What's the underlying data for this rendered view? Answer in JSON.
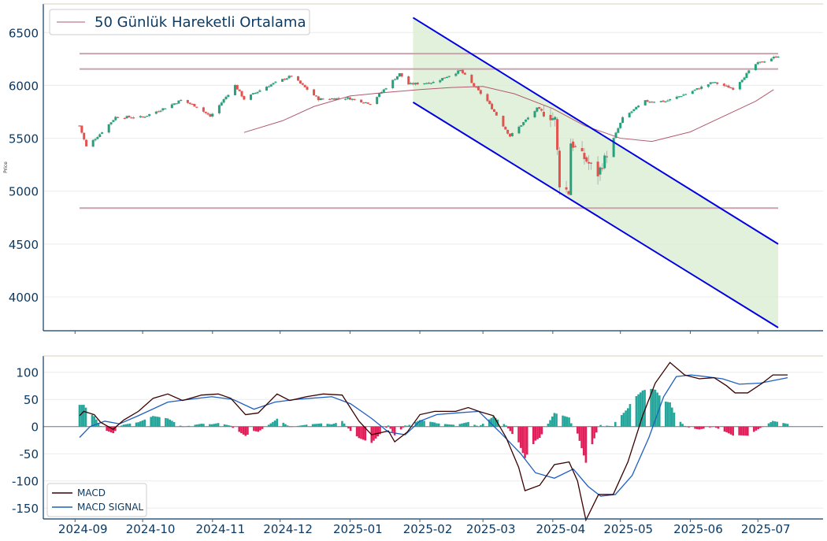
{
  "colors": {
    "up": "#26a17e",
    "down": "#e5514d",
    "sma": "#b05a6e",
    "hline": "#c8a4ad",
    "channel_line": "#0000e0",
    "channel_fill": "#d8ecd0",
    "macd": "#3a0000",
    "signal": "#1f5fc0",
    "hist_pos": "#26a69a",
    "hist_neg": "#e0205a",
    "axis_text": "#0c3a63"
  },
  "chart_data": [
    {
      "type": "candlestick",
      "title": "",
      "ylabel": "Price",
      "ylim": [
        3680,
        6770
      ],
      "yticks": [
        4000,
        4500,
        5000,
        5500,
        6000,
        6500
      ],
      "grid": true,
      "legend_position": "top-left",
      "legend": [
        "50 Günlük Hareketli Ortalama"
      ],
      "x_start": "2024-09-03",
      "x_end": "2025-07-10",
      "candle_keypoints": [
        [
          "2024-09-03",
          5620
        ],
        [
          "2024-09-06",
          5420
        ],
        [
          "2024-09-12",
          5540
        ],
        [
          "2024-09-19",
          5700
        ],
        [
          "2024-10-01",
          5700
        ],
        [
          "2024-10-10",
          5780
        ],
        [
          "2024-10-18",
          5860
        ],
        [
          "2024-10-25",
          5800
        ],
        [
          "2024-10-31",
          5705
        ],
        [
          "2024-11-11",
          6000
        ],
        [
          "2024-11-15",
          5870
        ],
        [
          "2024-11-25",
          5990
        ],
        [
          "2024-12-06",
          6090
        ],
        [
          "2024-12-18",
          5870
        ],
        [
          "2024-12-31",
          5880
        ],
        [
          "2025-01-10",
          5830
        ],
        [
          "2025-01-23",
          6110
        ],
        [
          "2025-01-27",
          6010
        ],
        [
          "2025-02-07",
          6030
        ],
        [
          "2025-02-19",
          6140
        ],
        [
          "2025-03-03",
          5850
        ],
        [
          "2025-03-13",
          5520
        ],
        [
          "2025-03-25",
          5780
        ],
        [
          "2025-04-02",
          5680
        ],
        [
          "2025-04-04",
          5070
        ],
        [
          "2025-04-08",
          4990
        ],
        [
          "2025-04-09",
          5460
        ],
        [
          "2025-04-21",
          5160
        ],
        [
          "2025-05-02",
          5690
        ],
        [
          "2025-05-12",
          5850
        ],
        [
          "2025-05-21",
          5850
        ],
        [
          "2025-05-30",
          5920
        ],
        [
          "2025-06-11",
          6030
        ],
        [
          "2025-06-20",
          5970
        ],
        [
          "2025-06-30",
          6200
        ],
        [
          "2025-07-10",
          6280
        ]
      ],
      "sma_50": [
        [
          "2024-11-15",
          5555
        ],
        [
          "2024-12-02",
          5665
        ],
        [
          "2024-12-16",
          5800
        ],
        [
          "2025-01-01",
          5900
        ],
        [
          "2025-01-15",
          5930
        ],
        [
          "2025-02-01",
          5960
        ],
        [
          "2025-02-15",
          5980
        ],
        [
          "2025-03-01",
          5990
        ],
        [
          "2025-03-15",
          5920
        ],
        [
          "2025-04-01",
          5780
        ],
        [
          "2025-04-15",
          5620
        ],
        [
          "2025-05-01",
          5500
        ],
        [
          "2025-05-15",
          5470
        ],
        [
          "2025-06-01",
          5560
        ],
        [
          "2025-06-15",
          5700
        ],
        [
          "2025-06-30",
          5850
        ],
        [
          "2025-07-08",
          5960
        ]
      ],
      "horizontal_levels": [
        6300,
        6155,
        4840
      ],
      "channel": {
        "upper": [
          [
            "2025-01-29",
            6640
          ],
          [
            "2025-07-10",
            4500
          ]
        ],
        "lower": [
          [
            "2025-01-29",
            5840
          ],
          [
            "2025-07-10",
            3710
          ]
        ]
      }
    },
    {
      "type": "macd",
      "ylim": [
        -170,
        130
      ],
      "yticks": [
        -150,
        -100,
        -50,
        0,
        50,
        100
      ],
      "grid": true,
      "legend_position": "bottom-left",
      "legend": [
        "MACD",
        "MACD SIGNAL"
      ],
      "xticks": [
        "2024-09",
        "2024-10",
        "2024-11",
        "2024-12",
        "2025-01",
        "2025-02",
        "2025-03",
        "2025-04",
        "2025-05",
        "2025-06",
        "2025-07"
      ],
      "macd": [
        [
          "2024-09-03",
          20
        ],
        [
          "2024-09-05",
          28
        ],
        [
          "2024-09-10",
          22
        ],
        [
          "2024-09-13",
          8
        ],
        [
          "2024-09-19",
          -5
        ],
        [
          "2024-09-24",
          12
        ],
        [
          "2024-10-01",
          28
        ],
        [
          "2024-10-08",
          52
        ],
        [
          "2024-10-15",
          60
        ],
        [
          "2024-10-22",
          48
        ],
        [
          "2024-10-31",
          58
        ],
        [
          "2024-11-08",
          60
        ],
        [
          "2024-11-14",
          52
        ],
        [
          "2024-11-21",
          22
        ],
        [
          "2024-11-27",
          25
        ],
        [
          "2024-12-06",
          60
        ],
        [
          "2024-12-12",
          48
        ],
        [
          "2024-12-20",
          55
        ],
        [
          "2024-12-28",
          60
        ],
        [
          "2025-01-06",
          58
        ],
        [
          "2025-01-14",
          10
        ],
        [
          "2025-01-20",
          -15
        ],
        [
          "2025-01-28",
          -8
        ],
        [
          "2025-01-31",
          -28
        ],
        [
          "2025-02-06",
          -10
        ],
        [
          "2025-02-12",
          22
        ],
        [
          "2025-02-19",
          28
        ],
        [
          "2025-03-01",
          28
        ],
        [
          "2025-03-07",
          35
        ],
        [
          "2025-03-12",
          28
        ],
        [
          "2025-03-19",
          20
        ],
        [
          "2025-03-25",
          -20
        ],
        [
          "2025-03-31",
          -75
        ],
        [
          "2025-04-03",
          -118
        ],
        [
          "2025-04-10",
          -108
        ],
        [
          "2025-04-17",
          -70
        ],
        [
          "2025-04-24",
          -65
        ],
        [
          "2025-04-28",
          -100
        ],
        [
          "2025-05-02",
          -172
        ],
        [
          "2025-05-08",
          -125
        ],
        [
          "2025-05-15",
          -125
        ],
        [
          "2025-05-22",
          -65
        ],
        [
          "2025-05-29",
          20
        ],
        [
          "2025-06-04",
          80
        ],
        [
          "2025-06-11",
          118
        ],
        [
          "2025-06-18",
          95
        ],
        [
          "2025-06-25",
          88
        ],
        [
          "2025-07-02",
          90
        ],
        [
          "2025-07-08",
          75
        ],
        [
          "2025-07-12",
          62
        ],
        [
          "2025-07-18",
          62
        ],
        [
          "2025-07-25",
          80
        ],
        [
          "2025-07-30",
          95
        ],
        [
          "2025-08-06",
          95
        ]
      ],
      "signal": [
        [
          "2024-09-03",
          -20
        ],
        [
          "2024-09-08",
          0
        ],
        [
          "2024-09-15",
          10
        ],
        [
          "2024-09-22",
          5
        ],
        [
          "2024-10-01",
          20
        ],
        [
          "2024-10-15",
          45
        ],
        [
          "2024-10-25",
          50
        ],
        [
          "2024-11-05",
          55
        ],
        [
          "2024-11-15",
          50
        ],
        [
          "2024-11-25",
          32
        ],
        [
          "2024-12-05",
          45
        ],
        [
          "2024-12-15",
          50
        ],
        [
          "2025-01-01",
          55
        ],
        [
          "2025-01-10",
          42
        ],
        [
          "2025-01-20",
          15
        ],
        [
          "2025-01-28",
          -10
        ],
        [
          "2025-02-05",
          -15
        ],
        [
          "2025-02-12",
          10
        ],
        [
          "2025-02-20",
          22
        ],
        [
          "2025-03-01",
          25
        ],
        [
          "2025-03-12",
          28
        ],
        [
          "2025-03-22",
          -10
        ],
        [
          "2025-04-01",
          -50
        ],
        [
          "2025-04-08",
          -85
        ],
        [
          "2025-04-17",
          -95
        ],
        [
          "2025-04-26",
          -78
        ],
        [
          "2025-05-03",
          -110
        ],
        [
          "2025-05-09",
          -128
        ],
        [
          "2025-05-16",
          -125
        ],
        [
          "2025-05-24",
          -90
        ],
        [
          "2025-06-01",
          -20
        ],
        [
          "2025-06-08",
          55
        ],
        [
          "2025-06-14",
          92
        ],
        [
          "2025-06-21",
          95
        ],
        [
          "2025-06-28",
          92
        ],
        [
          "2025-07-06",
          88
        ],
        [
          "2025-07-14",
          78
        ],
        [
          "2025-07-24",
          80
        ],
        [
          "2025-08-06",
          90
        ]
      ]
    }
  ]
}
